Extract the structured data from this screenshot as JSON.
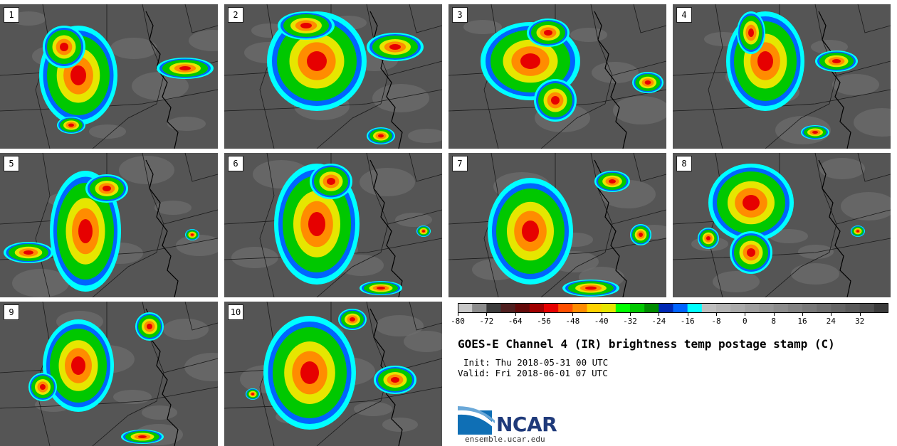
{
  "panels": [
    {
      "label": "1"
    },
    {
      "label": "2"
    },
    {
      "label": "3"
    },
    {
      "label": "4"
    },
    {
      "label": "5"
    },
    {
      "label": "6"
    },
    {
      "label": "7"
    },
    {
      "label": "8"
    },
    {
      "label": "9"
    },
    {
      "label": "10"
    }
  ],
  "colorbar": {
    "ticks": [
      "-80",
      "-72",
      "-64",
      "-56",
      "-48",
      "-40",
      "-32",
      "-24",
      "-16",
      "-8",
      "0",
      "8",
      "16",
      "24",
      "32"
    ],
    "tick_values": [
      -80,
      -72,
      -64,
      -56,
      -48,
      -40,
      -32,
      -24,
      -16,
      -8,
      0,
      8,
      16,
      24,
      32
    ],
    "min": -80,
    "max": 40,
    "step": 4,
    "colors": [
      "#c8c8c8",
      "#8c8c8c",
      "#3c3c3c",
      "#502020",
      "#640a0a",
      "#a00000",
      "#e60000",
      "#ff4f00",
      "#ff8c00",
      "#ffd200",
      "#e6e600",
      "#00ff00",
      "#00c800",
      "#008c00",
      "#0028b4",
      "#0064ff",
      "#00ffff",
      "#bebebe",
      "#b4b4b4",
      "#aaaaaa",
      "#a0a0a0",
      "#969696",
      "#8c8c8c",
      "#828282",
      "#787878",
      "#6e6e6e",
      "#646464",
      "#5a5a5a",
      "#505050",
      "#3c3c3c"
    ]
  },
  "title": "GOES-E Channel 4 (IR) brightness temp postage stamp (C)",
  "init": "Init: Thu 2018-05-31 00 UTC",
  "valid": "Valid: Fri 2018-06-01 07 UTC",
  "logo": {
    "text": "NCAR",
    "website": "ensemble.ucar.edu"
  }
}
